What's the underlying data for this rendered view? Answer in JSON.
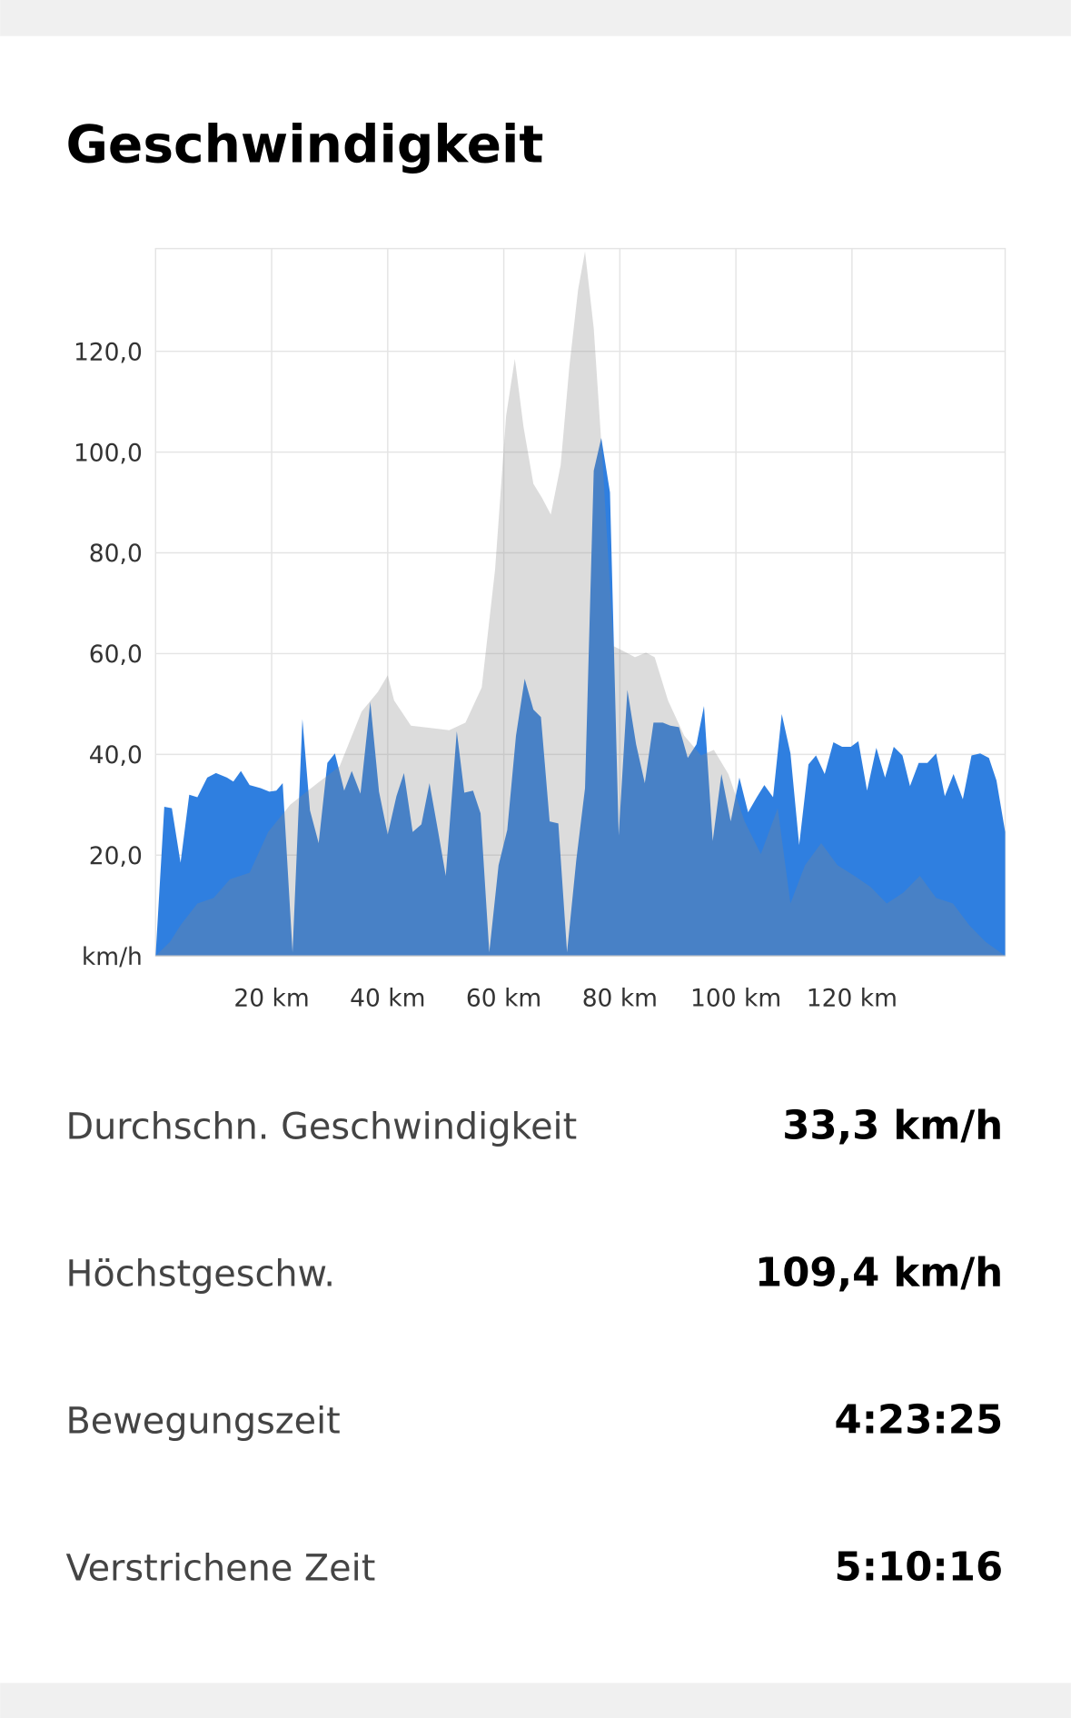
{
  "title": "Geschwindigkeit",
  "chart_data": {
    "type": "area",
    "xlim": [
      0,
      146.4
    ],
    "ylim": [
      0,
      140.4
    ],
    "xticks": [
      {
        "value": 20,
        "label": "20 km"
      },
      {
        "value": 40,
        "label": "40 km"
      },
      {
        "value": 60,
        "label": "60 km"
      },
      {
        "value": 80,
        "label": "80 km"
      },
      {
        "value": 100,
        "label": "100 km"
      },
      {
        "value": 120,
        "label": "120 km"
      }
    ],
    "yticks": [
      {
        "value": 0,
        "label": "km/h"
      },
      {
        "value": 20,
        "label": "20,0"
      },
      {
        "value": 40,
        "label": "40,0"
      },
      {
        "value": 60,
        "label": "60,0"
      },
      {
        "value": 80,
        "label": "80,0"
      },
      {
        "value": 100,
        "label": "100,0"
      },
      {
        "value": 120,
        "label": "120,0"
      }
    ],
    "grid": true,
    "series": [
      {
        "color": "#2f7fe0",
        "opacity": 1,
        "x": [
          0,
          1.5,
          2.8,
          4.3,
          5.8,
          7.2,
          8.9,
          10.4,
          12.3,
          13.4,
          14.7,
          16.2,
          18.1,
          19.6,
          20.8,
          21.9,
          23.6,
          25.3,
          26.6,
          28.1,
          29.6,
          30.9,
          32.5,
          33.8,
          35.3,
          37,
          38.5,
          40,
          41.5,
          42.8,
          44.3,
          45.8,
          47.2,
          48.7,
          50,
          51.9,
          53.2,
          54.7,
          56,
          57.5,
          59.1,
          60.6,
          62.1,
          63.6,
          65.1,
          66.4,
          67.9,
          69.4,
          70.9,
          72.5,
          74,
          75.5,
          76.8,
          78.3,
          79.8,
          81.3,
          82.8,
          84.3,
          85.8,
          87.4,
          88.7,
          90.2,
          91.7,
          93.2,
          94.5,
          96,
          97.5,
          99.1,
          100.6,
          102.1,
          103.6,
          104.9,
          106.4,
          107.9,
          109.4,
          110.9,
          112.5,
          113.8,
          115.3,
          116.8,
          118.3,
          119.8,
          121.1,
          122.6,
          124.2,
          125.7,
          127.2,
          128.7,
          130,
          131.5,
          133,
          134.5,
          136,
          137.5,
          139.1,
          140.6,
          142.1,
          143.6,
          144.9,
          146.4
        ],
        "values": [
          0,
          29.6,
          29.3,
          18.5,
          32,
          31.5,
          35.4,
          36.3,
          35.4,
          34.6,
          36.7,
          33.9,
          33.3,
          32.6,
          32.8,
          34.3,
          0.7,
          47,
          28.9,
          22.4,
          38.3,
          40.2,
          32.8,
          36.7,
          32.2,
          50.4,
          32.6,
          24.1,
          31.7,
          36.3,
          24.6,
          26.1,
          34.3,
          24.6,
          15.9,
          44.6,
          32.4,
          32.8,
          28.3,
          0.7,
          18,
          25,
          43.7,
          55,
          48.9,
          47.4,
          26.7,
          26.3,
          0.7,
          19.1,
          33.3,
          96.3,
          102.8,
          92,
          23.9,
          52.8,
          42,
          34.3,
          46.3,
          46.3,
          45.7,
          45.4,
          39.3,
          42,
          49.6,
          22.8,
          36.1,
          26.7,
          35.4,
          28.5,
          31.5,
          33.9,
          31.5,
          48,
          40.2,
          22,
          38,
          39.8,
          36.1,
          42.4,
          41.5,
          41.5,
          42.6,
          32.8,
          41.3,
          35.4,
          41.5,
          39.8,
          33.7,
          38.3,
          38.3,
          40.2,
          31.7,
          36.1,
          31.1,
          39.8,
          40.2,
          39.3,
          34.8,
          24.6
        ]
      },
      {
        "color": "#888888",
        "opacity": 0.29,
        "x": [
          0,
          2.5,
          4.3,
          7.2,
          10,
          12.8,
          16.2,
          19.4,
          23.2,
          27.9,
          31.7,
          35.5,
          38.3,
          40,
          41.1,
          44,
          47.7,
          50.6,
          53.4,
          56.2,
          58.5,
          60.4,
          61.9,
          63.4,
          65.1,
          66.6,
          68.1,
          69.8,
          71.3,
          72.8,
          74,
          75.5,
          77,
          78.9,
          80.8,
          82.6,
          84.5,
          86,
          88.3,
          91.1,
          94,
          96.2,
          98.7,
          101.5,
          104.3,
          107.2,
          109.4,
          111.9,
          114.7,
          117.5,
          120.4,
          123.2,
          126,
          128.9,
          131.7,
          134.5,
          137.4,
          140.2,
          143,
          146.4
        ],
        "values": [
          0,
          2.8,
          6.1,
          10.4,
          11.5,
          15.2,
          16.5,
          24.6,
          30,
          34.3,
          37.6,
          48.5,
          52.4,
          55.7,
          50.7,
          45.7,
          45.2,
          44.8,
          46.3,
          53.3,
          76.7,
          107.2,
          118.5,
          105,
          93.7,
          90.9,
          87.6,
          97.4,
          117,
          132.2,
          139.8,
          124.6,
          98.5,
          61.5,
          60.4,
          59.3,
          60.2,
          59.3,
          50.7,
          43.7,
          39.8,
          40.9,
          36.1,
          26.7,
          20.2,
          29.3,
          10.4,
          18,
          22.4,
          18,
          15.9,
          13.7,
          10.4,
          12.6,
          15.9,
          11.5,
          10.4,
          6.1,
          2.8,
          0
        ]
      }
    ]
  },
  "stats": [
    {
      "label": "Durchschn. Geschwindigkeit",
      "value": "33,3 km/h"
    },
    {
      "label": "Höchstgeschw.",
      "value": "109,4 km/h"
    },
    {
      "label": "Bewegungszeit",
      "value": "4:23:25"
    },
    {
      "label": "Verstrichene Zeit",
      "value": "5:10:16"
    }
  ]
}
